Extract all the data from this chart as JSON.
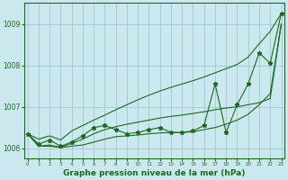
{
  "x": [
    0,
    1,
    2,
    3,
    4,
    5,
    6,
    7,
    8,
    9,
    10,
    11,
    12,
    13,
    14,
    15,
    16,
    17,
    18,
    19,
    20,
    21,
    22,
    23
  ],
  "y_main": [
    1006.35,
    1006.1,
    1006.2,
    1006.05,
    1006.15,
    1006.3,
    1006.5,
    1006.55,
    1006.45,
    1006.35,
    1006.38,
    1006.45,
    1006.5,
    1006.38,
    1006.38,
    1006.42,
    1006.55,
    1007.55,
    1006.38,
    1007.05,
    1007.55,
    1008.3,
    1008.05,
    1009.25
  ],
  "y_upper": [
    1006.35,
    1006.22,
    1006.3,
    1006.2,
    1006.42,
    1006.55,
    1006.68,
    1006.8,
    1006.93,
    1007.05,
    1007.17,
    1007.28,
    1007.38,
    1007.47,
    1007.55,
    1007.63,
    1007.72,
    1007.82,
    1007.92,
    1008.02,
    1008.2,
    1008.52,
    1008.82,
    1009.25
  ],
  "y_lower": [
    1006.35,
    1006.05,
    1006.05,
    1006.02,
    1006.05,
    1006.08,
    1006.15,
    1006.22,
    1006.28,
    1006.3,
    1006.32,
    1006.35,
    1006.37,
    1006.38,
    1006.38,
    1006.4,
    1006.45,
    1006.5,
    1006.58,
    1006.68,
    1006.82,
    1007.05,
    1007.32,
    1009.0
  ],
  "y_mid": [
    1006.35,
    1006.05,
    1006.08,
    1006.02,
    1006.12,
    1006.22,
    1006.35,
    1006.45,
    1006.52,
    1006.58,
    1006.63,
    1006.68,
    1006.73,
    1006.77,
    1006.8,
    1006.84,
    1006.88,
    1006.93,
    1006.97,
    1007.0,
    1007.05,
    1007.1,
    1007.2,
    1009.0
  ],
  "ylim": [
    1005.75,
    1009.5
  ],
  "yticks": [
    1006,
    1007,
    1008,
    1009
  ],
  "xticks": [
    0,
    1,
    2,
    3,
    4,
    5,
    6,
    7,
    8,
    9,
    10,
    11,
    12,
    13,
    14,
    15,
    16,
    17,
    18,
    19,
    20,
    21,
    22,
    23
  ],
  "bg_color": "#cce8ef",
  "line_color": "#1a6b1a",
  "grid_color": "#a0c8d8",
  "xlabel": "Graphe pression niveau de la mer (hPa)",
  "marker": "*",
  "marker_size": 3.5,
  "lw": 0.8
}
